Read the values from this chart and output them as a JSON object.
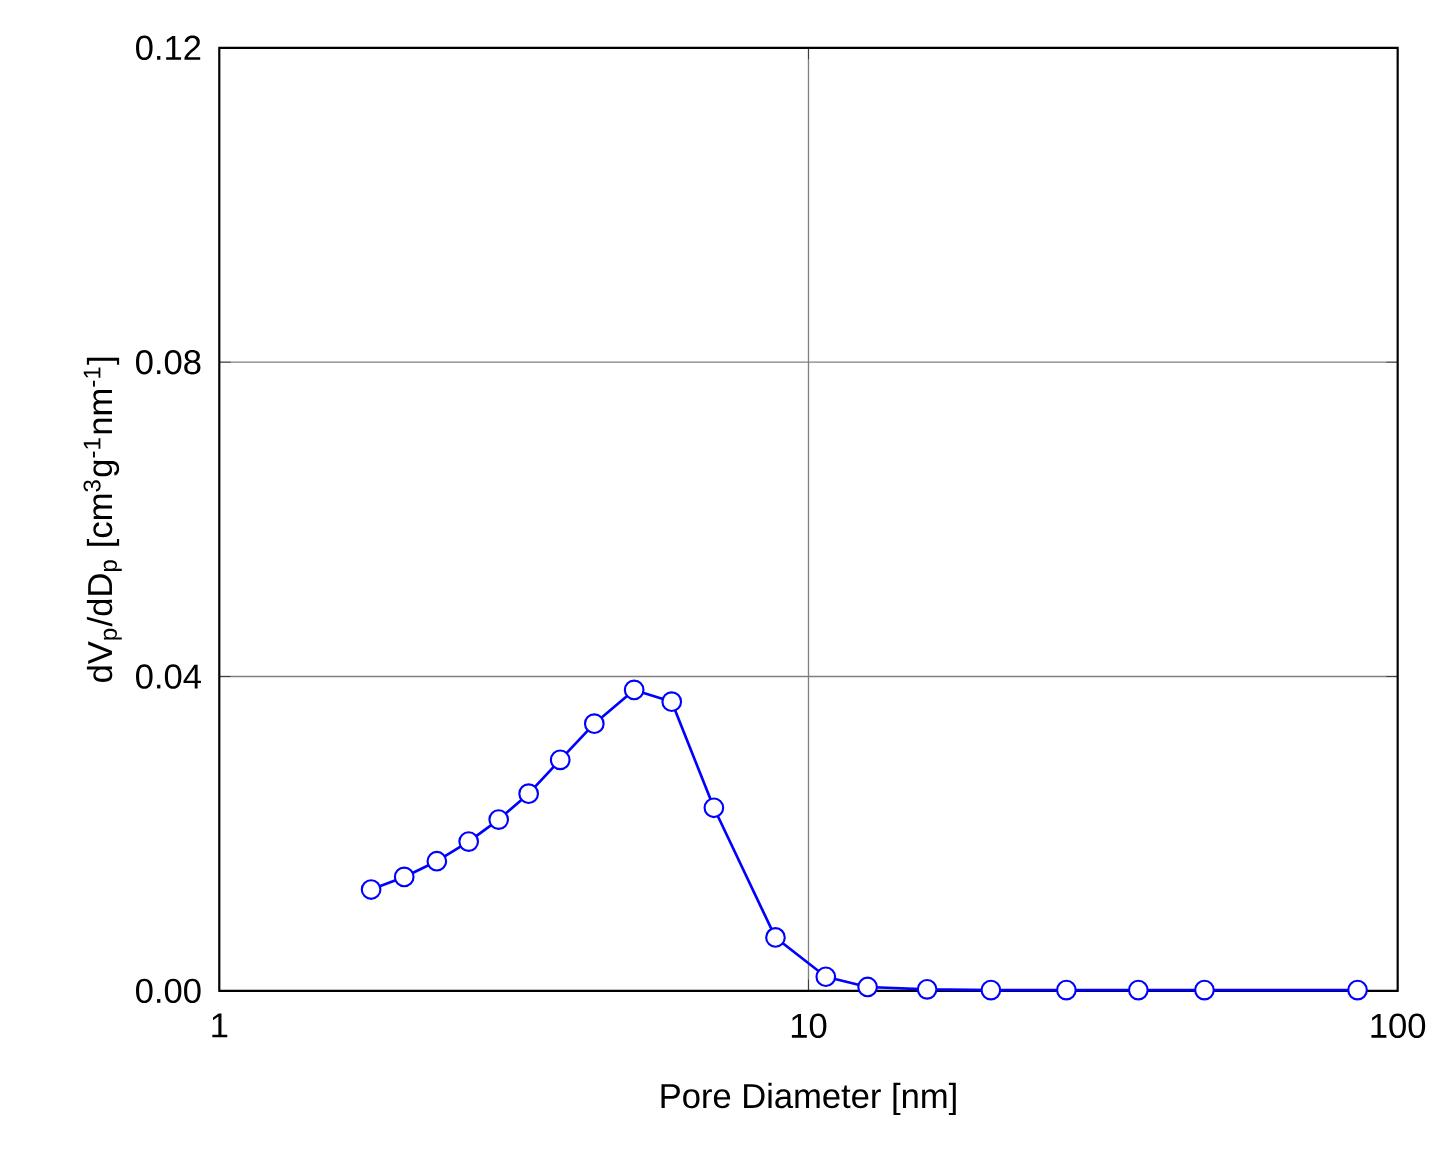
{
  "chart_data": {
    "type": "line",
    "xlabel": "Pore Diameter [nm]",
    "ylabel": "dV$_{p}$/dD$_{p}$ [cm$^{3}$g$^{-1}$nm$^{-1}$]",
    "log": "x",
    "xlim": [
      1,
      100
    ],
    "xticks": [
      1,
      10,
      100
    ],
    "ylim": [
      0,
      0.12
    ],
    "yticks": [
      {
        "value": 0,
        "label": "0.00"
      },
      {
        "value": 0.04,
        "label": "0.04"
      },
      {
        "value": 0.08,
        "label": "0.08"
      },
      {
        "value": 0.12,
        "label": "0.12"
      }
    ],
    "grid": true,
    "marker": "circle",
    "line_style": "solid",
    "series": [
      {
        "color": "#0000ff",
        "x": [
          1.81,
          2.06,
          2.34,
          2.65,
          2.98,
          3.35,
          3.79,
          4.33,
          5.06,
          5.86,
          6.91,
          8.79,
          10.7,
          12.6,
          15.9,
          20.4,
          27.4,
          36.3,
          47.0,
          85.5
        ],
        "values": [
          0.0129,
          0.0145,
          0.0165,
          0.019,
          0.0218,
          0.0251,
          0.0294,
          0.034,
          0.0383,
          0.0368,
          0.0233,
          0.0068,
          0.0018,
          0.0005,
          0.0002,
          0.0001,
          0.0001,
          0.0001,
          0.0001,
          0.0001
        ]
      }
    ]
  }
}
